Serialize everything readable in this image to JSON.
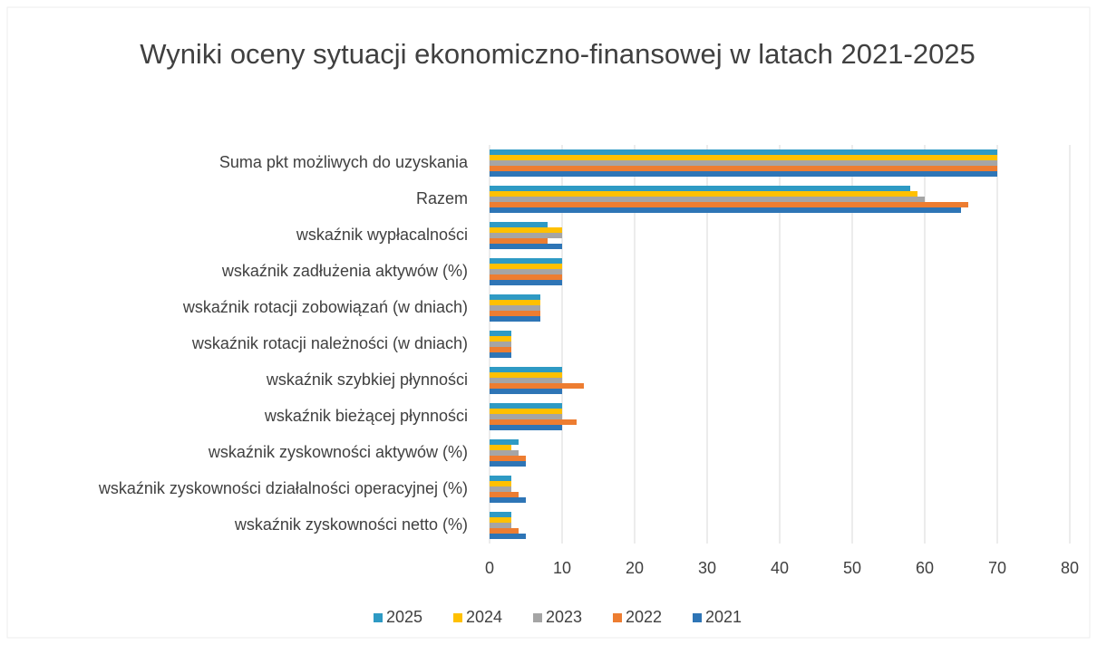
{
  "chart_data": {
    "type": "bar",
    "orientation": "horizontal",
    "title": "Wyniki oceny sytuacji ekonomiczno-finansowej w latach 2021-2025",
    "categories": [
      "Suma pkt możliwych do uzyskania",
      "Razem",
      "wskaźnik wypłacalności",
      "wskaźnik zadłużenia aktywów (%)",
      "wskaźnik rotacji zobowiązań  (w dniach)",
      "wskaźnik rotacji należności (w dniach)",
      "wskaźnik szybkiej płynności",
      "wskaźnik bieżącej płynności",
      "wskaźnik zyskowności aktywów (%)",
      "wskaźnik zyskowności działalności operacyjnej (%)",
      "wskaźnik zyskowności netto (%)"
    ],
    "series": [
      {
        "name": "2025",
        "color": "#2e9ac4",
        "values": [
          70,
          58,
          8,
          10,
          7,
          3,
          10,
          10,
          4,
          3,
          3
        ]
      },
      {
        "name": "2024",
        "color": "#ffc000",
        "values": [
          70,
          59,
          10,
          10,
          7,
          3,
          10,
          10,
          3,
          3,
          3
        ]
      },
      {
        "name": "2023",
        "color": "#a5a5a5",
        "values": [
          70,
          60,
          10,
          10,
          7,
          3,
          10,
          10,
          4,
          3,
          3
        ]
      },
      {
        "name": "2022",
        "color": "#ed7d31",
        "values": [
          70,
          66,
          8,
          10,
          7,
          3,
          13,
          12,
          5,
          4,
          4
        ]
      },
      {
        "name": "2021",
        "color": "#2e75b6",
        "values": [
          70,
          65,
          10,
          10,
          7,
          3,
          10,
          10,
          5,
          5,
          5
        ]
      }
    ],
    "xlim": [
      0,
      80
    ],
    "xticks": [
      0,
      10,
      20,
      30,
      40,
      50,
      60,
      70,
      80
    ],
    "grid": true,
    "legend": "bottom"
  }
}
